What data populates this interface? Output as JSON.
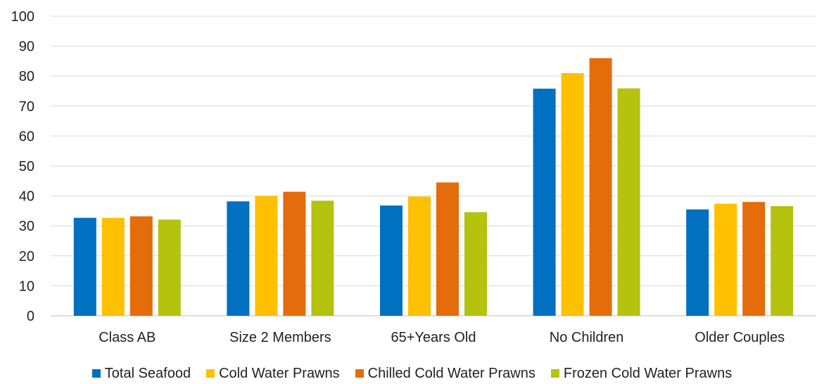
{
  "chart_data": {
    "type": "bar",
    "categories": [
      "Class AB",
      "Size 2 Members",
      "65+Years Old",
      "No Children",
      "Older Couples"
    ],
    "series": [
      {
        "name": "Total Seafood",
        "color": "#0070C0",
        "values": [
          32.7,
          38.2,
          36.8,
          75.8,
          35.5
        ]
      },
      {
        "name": "Cold Water Prawns",
        "color": "#FFC000",
        "values": [
          32.7,
          40.0,
          39.8,
          81.0,
          37.4
        ]
      },
      {
        "name": "Chilled Cold Water Prawns",
        "color": "#E46C0A",
        "values": [
          33.2,
          41.4,
          44.5,
          86.0,
          38.0
        ]
      },
      {
        "name": "Frozen Cold Water Prawns",
        "color": "#B5C20E",
        "values": [
          32.1,
          38.4,
          34.6,
          75.9,
          36.6
        ]
      }
    ],
    "ylim": [
      0,
      100
    ],
    "yticks": [
      0,
      10,
      20,
      30,
      40,
      50,
      60,
      70,
      80,
      90,
      100
    ],
    "grid": true,
    "legend_position": "bottom"
  }
}
